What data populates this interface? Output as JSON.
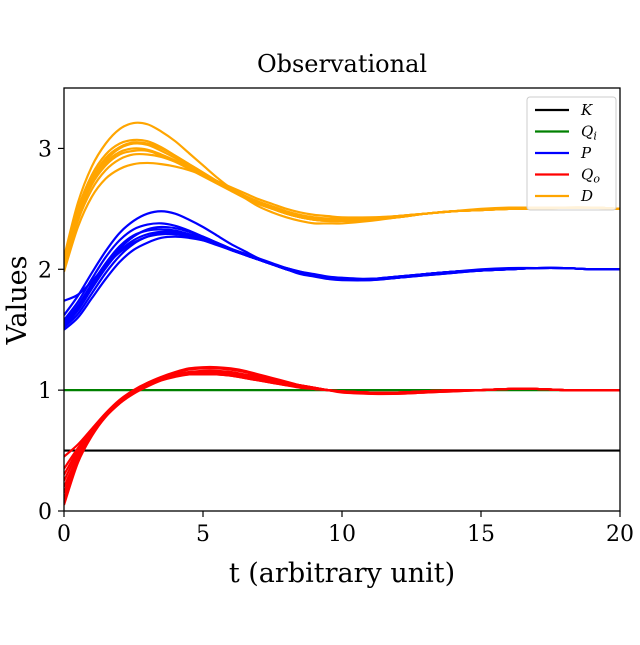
{
  "chart_data": {
    "type": "line",
    "title": "Observational",
    "xlabel": "t (arbitrary unit)",
    "ylabel": "Values",
    "xlim": [
      0,
      20
    ],
    "ylim": [
      0,
      3.5
    ],
    "xticks": [
      0,
      5,
      10,
      15,
      20
    ],
    "yticks": [
      0,
      1,
      2,
      3
    ],
    "grid": false,
    "legend_position": "top-right",
    "x": [
      0,
      0.5,
      1,
      1.5,
      2,
      2.5,
      3,
      3.5,
      4,
      4.5,
      5,
      5.5,
      6,
      6.5,
      7,
      7.5,
      8,
      8.5,
      9,
      9.5,
      10,
      11,
      12,
      13,
      14,
      15,
      16,
      17,
      18,
      19,
      20
    ],
    "series": [
      {
        "name": "K",
        "legend_main": "K",
        "legend_sub": "",
        "color": "#000000",
        "lines": [
          [
            0.5,
            0.5,
            0.5,
            0.5,
            0.5,
            0.5,
            0.5,
            0.5,
            0.5,
            0.5,
            0.5,
            0.5,
            0.5,
            0.5,
            0.5,
            0.5,
            0.5,
            0.5,
            0.5,
            0.5,
            0.5,
            0.5,
            0.5,
            0.5,
            0.5,
            0.5,
            0.5,
            0.5,
            0.5,
            0.5,
            0.5
          ]
        ]
      },
      {
        "name": "Q_i",
        "legend_main": "Q",
        "legend_sub": "i",
        "color": "#008000",
        "lines": [
          [
            1.0,
            1.0,
            1.0,
            1.0,
            1.0,
            1.0,
            1.0,
            1.0,
            1.0,
            1.0,
            1.0,
            1.0,
            1.0,
            1.0,
            1.0,
            1.0,
            1.0,
            1.0,
            1.0,
            1.0,
            1.0,
            1.0,
            1.0,
            1.0,
            1.0,
            1.0,
            1.0,
            1.0,
            1.0,
            1.0,
            1.0
          ]
        ]
      },
      {
        "name": "P",
        "legend_main": "P",
        "legend_sub": "",
        "color": "#0000ff",
        "lines": [
          [
            1.52,
            1.63,
            1.8,
            1.97,
            2.11,
            2.21,
            2.27,
            2.3,
            2.3,
            2.28,
            2.25,
            2.21,
            2.16,
            2.12,
            2.08,
            2.04,
            2.0,
            1.97,
            1.95,
            1.93,
            1.92,
            1.91,
            1.93,
            1.96,
            1.98,
            1.99,
            2.0,
            2.01,
            2.01,
            2.0,
            2.0
          ],
          [
            1.55,
            1.68,
            1.86,
            2.03,
            2.17,
            2.27,
            2.33,
            2.35,
            2.34,
            2.31,
            2.27,
            2.22,
            2.17,
            2.12,
            2.08,
            2.04,
            2.0,
            1.97,
            1.95,
            1.93,
            1.92,
            1.92,
            1.94,
            1.96,
            1.98,
            1.99,
            2.0,
            2.01,
            2.01,
            2.0,
            2.0
          ],
          [
            1.58,
            1.73,
            1.92,
            2.1,
            2.24,
            2.33,
            2.37,
            2.38,
            2.36,
            2.32,
            2.27,
            2.22,
            2.17,
            2.12,
            2.08,
            2.04,
            2.0,
            1.97,
            1.95,
            1.93,
            1.92,
            1.92,
            1.94,
            1.96,
            1.98,
            1.99,
            2.0,
            2.01,
            2.01,
            2.0,
            2.0
          ],
          [
            1.5,
            1.6,
            1.76,
            1.92,
            2.06,
            2.16,
            2.22,
            2.26,
            2.27,
            2.26,
            2.24,
            2.21,
            2.17,
            2.13,
            2.09,
            2.05,
            2.01,
            1.98,
            1.96,
            1.94,
            1.93,
            1.92,
            1.93,
            1.95,
            1.97,
            1.99,
            2.0,
            2.01,
            2.01,
            2.0,
            2.0
          ],
          [
            1.62,
            1.78,
            1.97,
            2.15,
            2.3,
            2.4,
            2.46,
            2.48,
            2.46,
            2.41,
            2.35,
            2.28,
            2.21,
            2.15,
            2.09,
            2.04,
            2.0,
            1.96,
            1.94,
            1.92,
            1.91,
            1.91,
            1.93,
            1.96,
            1.98,
            2.0,
            2.01,
            2.01,
            2.01,
            2.0,
            2.0
          ],
          [
            1.74,
            1.79,
            1.9,
            2.03,
            2.14,
            2.22,
            2.27,
            2.29,
            2.29,
            2.27,
            2.24,
            2.2,
            2.16,
            2.12,
            2.08,
            2.04,
            2.01,
            1.98,
            1.95,
            1.93,
            1.92,
            1.92,
            1.93,
            1.95,
            1.97,
            1.99,
            2.0,
            2.01,
            2.01,
            2.0,
            2.0
          ],
          [
            1.53,
            1.66,
            1.84,
            2.01,
            2.15,
            2.24,
            2.29,
            2.31,
            2.31,
            2.29,
            2.26,
            2.22,
            2.17,
            2.12,
            2.08,
            2.04,
            2.0,
            1.97,
            1.95,
            1.93,
            1.92,
            1.92,
            1.93,
            1.96,
            1.98,
            1.99,
            2.0,
            2.01,
            2.01,
            2.0,
            2.0
          ],
          [
            1.56,
            1.7,
            1.88,
            2.05,
            2.19,
            2.28,
            2.32,
            2.33,
            2.32,
            2.29,
            2.25,
            2.21,
            2.16,
            2.12,
            2.08,
            2.04,
            2.0,
            1.97,
            1.95,
            1.93,
            1.92,
            1.92,
            1.94,
            1.96,
            1.98,
            1.99,
            2.0,
            2.01,
            2.01,
            2.0,
            2.0
          ]
        ]
      },
      {
        "name": "Q_o",
        "legend_main": "Q",
        "legend_sub": "o",
        "color": "#ff0000",
        "lines": [
          [
            0.05,
            0.4,
            0.62,
            0.78,
            0.89,
            0.97,
            1.03,
            1.08,
            1.11,
            1.13,
            1.14,
            1.14,
            1.13,
            1.11,
            1.09,
            1.07,
            1.05,
            1.03,
            1.01,
            1.0,
            0.99,
            0.98,
            0.98,
            0.99,
            1.0,
            1.0,
            1.01,
            1.01,
            1.0,
            1.0,
            1.0
          ],
          [
            0.2,
            0.45,
            0.64,
            0.79,
            0.9,
            0.98,
            1.04,
            1.09,
            1.12,
            1.14,
            1.15,
            1.15,
            1.14,
            1.12,
            1.1,
            1.08,
            1.06,
            1.04,
            1.02,
            1.0,
            0.99,
            0.98,
            0.98,
            0.99,
            1.0,
            1.0,
            1.01,
            1.01,
            1.0,
            1.0,
            1.0
          ],
          [
            0.3,
            0.5,
            0.66,
            0.8,
            0.91,
            0.99,
            1.06,
            1.11,
            1.15,
            1.18,
            1.19,
            1.19,
            1.18,
            1.16,
            1.13,
            1.1,
            1.07,
            1.04,
            1.02,
            1.0,
            0.98,
            0.97,
            0.97,
            0.98,
            0.99,
            1.0,
            1.01,
            1.01,
            1.0,
            1.0,
            1.0
          ],
          [
            0.45,
            0.55,
            0.68,
            0.81,
            0.92,
            1.0,
            1.06,
            1.1,
            1.13,
            1.14,
            1.14,
            1.13,
            1.12,
            1.1,
            1.08,
            1.06,
            1.04,
            1.02,
            1.01,
            1.0,
            0.99,
            0.98,
            0.98,
            0.99,
            1.0,
            1.0,
            1.01,
            1.01,
            1.0,
            1.0,
            1.0
          ],
          [
            0.1,
            0.42,
            0.63,
            0.78,
            0.89,
            0.98,
            1.05,
            1.1,
            1.14,
            1.17,
            1.18,
            1.18,
            1.17,
            1.15,
            1.12,
            1.09,
            1.06,
            1.04,
            1.02,
            1.0,
            0.99,
            0.97,
            0.97,
            0.98,
            0.99,
            1.0,
            1.01,
            1.01,
            1.0,
            1.0,
            1.0
          ],
          [
            0.35,
            0.52,
            0.67,
            0.8,
            0.91,
            0.99,
            1.05,
            1.09,
            1.12,
            1.13,
            1.13,
            1.13,
            1.12,
            1.1,
            1.08,
            1.06,
            1.04,
            1.03,
            1.01,
            1.0,
            0.99,
            0.98,
            0.98,
            0.99,
            1.0,
            1.0,
            1.01,
            1.01,
            1.0,
            1.0,
            1.0
          ],
          [
            0.25,
            0.48,
            0.65,
            0.79,
            0.9,
            0.99,
            1.05,
            1.1,
            1.13,
            1.15,
            1.16,
            1.16,
            1.15,
            1.13,
            1.11,
            1.08,
            1.06,
            1.04,
            1.02,
            1.0,
            0.99,
            0.98,
            0.98,
            0.99,
            1.0,
            1.0,
            1.01,
            1.01,
            1.0,
            1.0,
            1.0
          ],
          [
            0.15,
            0.44,
            0.64,
            0.79,
            0.9,
            0.98,
            1.04,
            1.09,
            1.12,
            1.14,
            1.15,
            1.15,
            1.14,
            1.12,
            1.1,
            1.08,
            1.05,
            1.03,
            1.01,
            1.0,
            0.99,
            0.98,
            0.98,
            0.99,
            1.0,
            1.0,
            1.01,
            1.01,
            1.0,
            1.0,
            1.0
          ]
        ]
      },
      {
        "name": "D",
        "legend_main": "D",
        "legend_sub": "",
        "color": "#ffa500",
        "lines": [
          [
            2.05,
            2.46,
            2.72,
            2.88,
            2.97,
            3.0,
            2.99,
            2.95,
            2.9,
            2.84,
            2.78,
            2.72,
            2.66,
            2.6,
            2.55,
            2.51,
            2.47,
            2.44,
            2.42,
            2.41,
            2.41,
            2.42,
            2.44,
            2.46,
            2.48,
            2.49,
            2.5,
            2.5,
            2.51,
            2.51,
            2.5
          ],
          [
            2.0,
            2.4,
            2.66,
            2.82,
            2.91,
            2.95,
            2.95,
            2.93,
            2.89,
            2.84,
            2.79,
            2.73,
            2.67,
            2.61,
            2.56,
            2.52,
            2.48,
            2.45,
            2.43,
            2.42,
            2.42,
            2.42,
            2.44,
            2.46,
            2.48,
            2.49,
            2.5,
            2.5,
            2.51,
            2.51,
            2.5
          ],
          [
            2.1,
            2.55,
            2.85,
            3.04,
            3.16,
            3.21,
            3.2,
            3.14,
            3.06,
            2.96,
            2.86,
            2.76,
            2.67,
            2.59,
            2.52,
            2.47,
            2.43,
            2.4,
            2.38,
            2.38,
            2.38,
            2.4,
            2.43,
            2.46,
            2.48,
            2.5,
            2.51,
            2.51,
            2.51,
            2.51,
            2.5
          ],
          [
            2.02,
            2.43,
            2.7,
            2.86,
            2.95,
            2.98,
            2.98,
            2.94,
            2.89,
            2.83,
            2.77,
            2.71,
            2.65,
            2.59,
            2.54,
            2.5,
            2.46,
            2.43,
            2.41,
            2.4,
            2.4,
            2.41,
            2.43,
            2.46,
            2.48,
            2.49,
            2.5,
            2.51,
            2.51,
            2.51,
            2.5
          ],
          [
            2.08,
            2.5,
            2.78,
            2.95,
            3.04,
            3.07,
            3.06,
            3.01,
            2.94,
            2.87,
            2.8,
            2.73,
            2.66,
            2.6,
            2.54,
            2.5,
            2.46,
            2.43,
            2.41,
            2.4,
            2.4,
            2.41,
            2.43,
            2.46,
            2.48,
            2.49,
            2.5,
            2.51,
            2.51,
            2.51,
            2.5
          ],
          [
            1.98,
            2.35,
            2.6,
            2.75,
            2.83,
            2.87,
            2.88,
            2.87,
            2.85,
            2.82,
            2.78,
            2.73,
            2.68,
            2.63,
            2.58,
            2.54,
            2.5,
            2.47,
            2.45,
            2.44,
            2.43,
            2.43,
            2.44,
            2.46,
            2.48,
            2.49,
            2.5,
            2.5,
            2.51,
            2.51,
            2.5
          ],
          [
            2.04,
            2.45,
            2.73,
            2.9,
            3.0,
            3.04,
            3.03,
            2.98,
            2.92,
            2.85,
            2.78,
            2.72,
            2.66,
            2.6,
            2.55,
            2.51,
            2.47,
            2.44,
            2.42,
            2.41,
            2.41,
            2.42,
            2.44,
            2.46,
            2.48,
            2.49,
            2.5,
            2.5,
            2.51,
            2.51,
            2.5
          ],
          [
            2.06,
            2.48,
            2.75,
            2.92,
            3.01,
            3.05,
            3.04,
            3.0,
            2.94,
            2.87,
            2.8,
            2.73,
            2.66,
            2.6,
            2.55,
            2.5,
            2.46,
            2.43,
            2.41,
            2.4,
            2.4,
            2.41,
            2.43,
            2.46,
            2.48,
            2.49,
            2.5,
            2.51,
            2.51,
            2.51,
            2.5
          ]
        ]
      }
    ]
  }
}
